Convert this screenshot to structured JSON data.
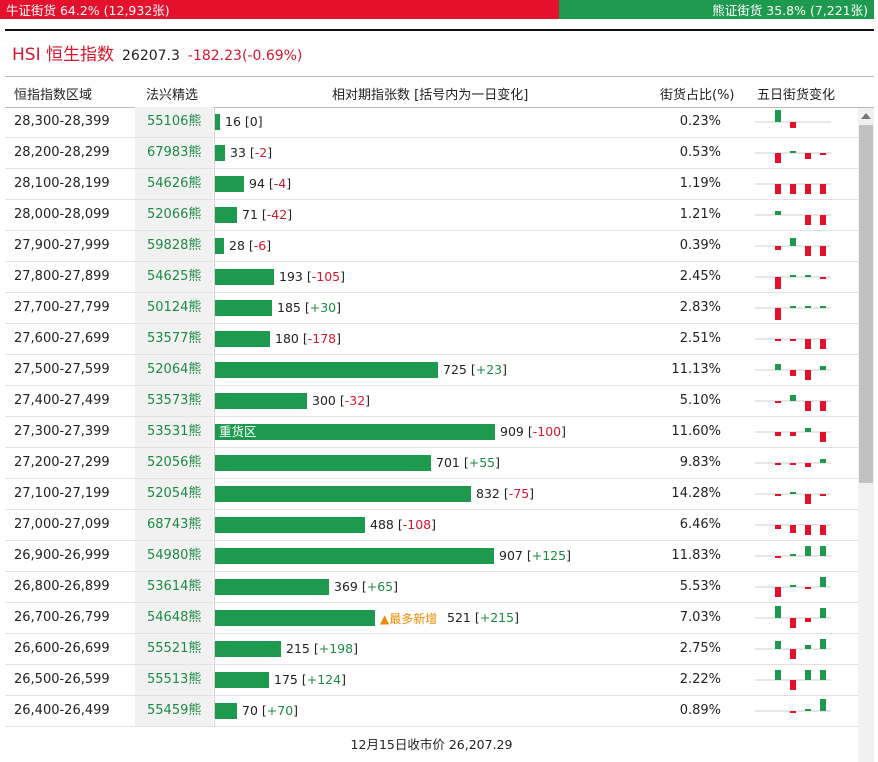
{
  "ratio": {
    "bull": "牛证街货 64.2% (12,932张)",
    "bear": "熊证街货 35.8% (7,221张)",
    "bull_fraction": 0.642
  },
  "index": {
    "name": "HSI 恒生指数",
    "value": "26207.3",
    "change": "-182.23(-0.69%)"
  },
  "headers": {
    "zone": "恒指指数区域",
    "pick": "法兴精选",
    "change": "相对期指张数 [括号内为一日变化]",
    "share": "街货占比(%)",
    "five_day": "五日街货变化"
  },
  "colors": {
    "bull": "#e5102c",
    "bear": "#1d9a4e",
    "accent": "#d7162e",
    "highlight": "#f08a00"
  },
  "rows": [
    {
      "zone": "28,300-28,399",
      "code": "55106熊",
      "qty": 16,
      "qty_text": "16",
      "chg": "0",
      "share": "0.23%",
      "spark": [
        6,
        -3,
        0,
        0
      ]
    },
    {
      "zone": "28,200-28,299",
      "code": "67983熊",
      "qty": 33,
      "qty_text": "33",
      "chg": "-2",
      "share": "0.53%",
      "spark": [
        -5,
        1,
        -3,
        -1
      ]
    },
    {
      "zone": "28,100-28,199",
      "code": "54626熊",
      "qty": 94,
      "qty_text": "94",
      "chg": "-4",
      "share": "1.19%",
      "spark": [
        -5,
        -5,
        -5,
        -5
      ]
    },
    {
      "zone": "28,000-28,099",
      "code": "52066熊",
      "qty": 71,
      "qty_text": "71",
      "chg": "-42",
      "share": "1.21%",
      "spark": [
        2,
        0,
        -5,
        -5
      ]
    },
    {
      "zone": "27,900-27,999",
      "code": "59828熊",
      "qty": 28,
      "qty_text": "28",
      "chg": "-6",
      "share": "0.39%",
      "spark": [
        -2,
        4,
        -5,
        -5
      ]
    },
    {
      "zone": "27,800-27,899",
      "code": "54625熊",
      "qty": 193,
      "qty_text": "193",
      "chg": "-105",
      "share": "2.45%",
      "spark": [
        -6,
        1,
        1,
        -1
      ]
    },
    {
      "zone": "27,700-27,799",
      "code": "50124熊",
      "qty": 185,
      "qty_text": "185",
      "chg": "+30",
      "share": "2.83%",
      "spark": [
        -6,
        1,
        1,
        1
      ]
    },
    {
      "zone": "27,600-27,699",
      "code": "53577熊",
      "qty": 180,
      "qty_text": "180",
      "chg": "-178",
      "share": "2.51%",
      "spark": [
        -1,
        -1,
        -5,
        -5
      ]
    },
    {
      "zone": "27,500-27,599",
      "code": "52064熊",
      "qty": 725,
      "qty_text": "725",
      "chg": "+23",
      "share": "11.13%",
      "spark": [
        3,
        -3,
        -5,
        2
      ]
    },
    {
      "zone": "27,400-27,499",
      "code": "53573熊",
      "qty": 300,
      "qty_text": "300",
      "chg": "-32",
      "share": "5.10%",
      "spark": [
        -1,
        3,
        -5,
        -5
      ]
    },
    {
      "zone": "27,300-27,399",
      "code": "53531熊",
      "qty": 909,
      "qty_text": "909",
      "chg": "-100",
      "share": "11.60%",
      "tag": "重货区",
      "tag_inside": true,
      "spark": [
        -2,
        -2,
        2,
        -5
      ]
    },
    {
      "zone": "27,200-27,299",
      "code": "52056熊",
      "qty": 701,
      "qty_text": "701",
      "chg": "+55",
      "share": "9.83%",
      "spark": [
        -1,
        -1,
        -2,
        2
      ]
    },
    {
      "zone": "27,100-27,199",
      "code": "52054熊",
      "qty": 832,
      "qty_text": "832",
      "chg": "-75",
      "share": "14.28%",
      "spark": [
        -1,
        1,
        -5,
        -1
      ]
    },
    {
      "zone": "27,000-27,099",
      "code": "68743熊",
      "qty": 488,
      "qty_text": "488",
      "chg": "-108",
      "share": "6.46%",
      "spark": [
        -2,
        -4,
        -5,
        -5
      ]
    },
    {
      "zone": "26,900-26,999",
      "code": "54980熊",
      "qty": 907,
      "qty_text": "907",
      "chg": "+125",
      "share": "11.83%",
      "spark": [
        -1,
        1,
        5,
        5
      ]
    },
    {
      "zone": "26,800-26,899",
      "code": "53614熊",
      "qty": 369,
      "qty_text": "369",
      "chg": "+65",
      "share": "5.53%",
      "spark": [
        -5,
        1,
        -1,
        5
      ]
    },
    {
      "zone": "26,700-26,799",
      "code": "54648熊",
      "qty": 521,
      "qty_text": "521",
      "chg": "+215",
      "share": "7.03%",
      "tag": "▲最多新增",
      "tag_inside": false,
      "spark": [
        6,
        -5,
        -2,
        5
      ]
    },
    {
      "zone": "26,600-26,699",
      "code": "55521熊",
      "qty": 215,
      "qty_text": "215",
      "chg": "+198",
      "share": "2.75%",
      "spark": [
        4,
        -5,
        2,
        5
      ]
    },
    {
      "zone": "26,500-26,599",
      "code": "55513熊",
      "qty": 175,
      "qty_text": "175",
      "chg": "+124",
      "share": "2.22%",
      "spark": [
        5,
        -5,
        5,
        5
      ]
    },
    {
      "zone": "26,400-26,499",
      "code": "55459熊",
      "qty": 70,
      "qty_text": "70",
      "chg": "+70",
      "share": "0.89%",
      "spark": [
        0,
        -1,
        1,
        6
      ]
    }
  ],
  "footer": "12月15日收市价 26,207.29"
}
